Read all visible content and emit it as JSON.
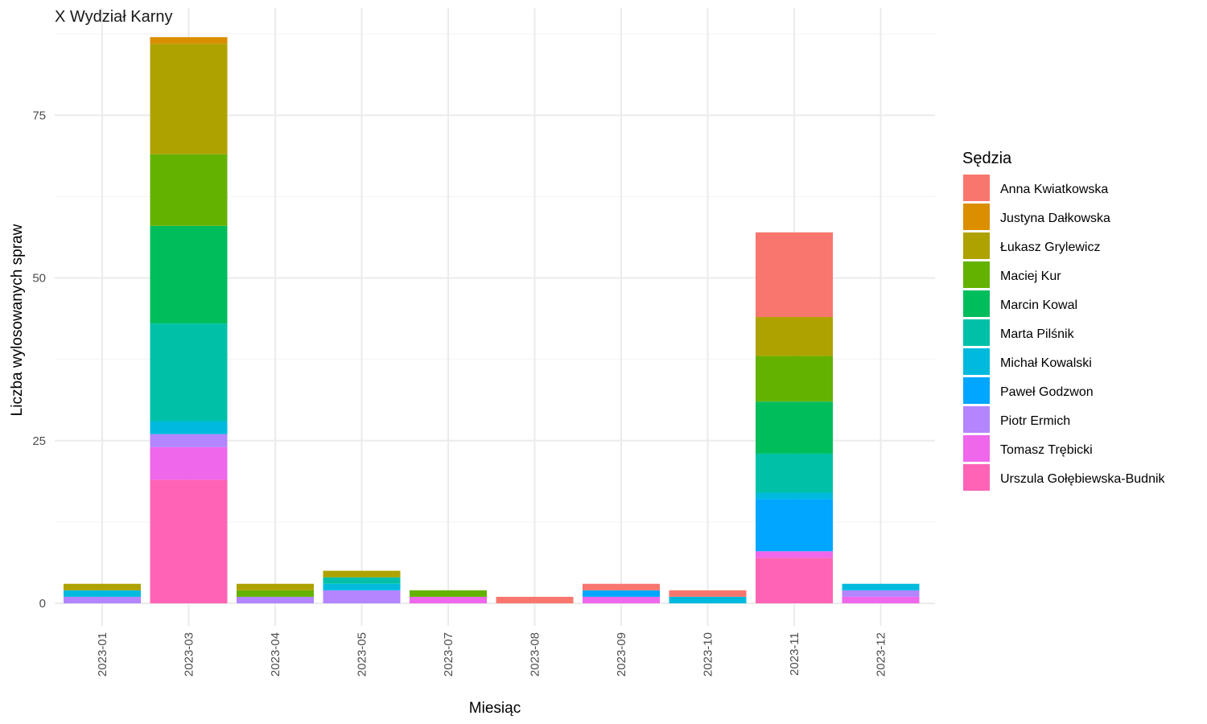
{
  "chart_data": {
    "type": "bar",
    "stacked": true,
    "facet_title": "X Wydział Karny",
    "xlabel": "Miesiąc",
    "ylabel": "Liczba wylosowanych spraw",
    "ylim": [
      0,
      88.7
    ],
    "yticks": [
      0,
      25,
      50,
      75
    ],
    "grid": true,
    "legend_position": "right",
    "legend_title": "Sędzia",
    "categories": [
      "2023-01",
      "2023-03",
      "2023-04",
      "2023-05",
      "2023-07",
      "2023-08",
      "2023-09",
      "2023-10",
      "2023-11",
      "2023-12"
    ],
    "series": [
      {
        "name": "Anna Kwiatkowska",
        "color": "#F8766D",
        "values": [
          0,
          0,
          0,
          0,
          0,
          1,
          1,
          1,
          13,
          0
        ]
      },
      {
        "name": "Justyna Dałkowska",
        "color": "#DB8E00",
        "values": [
          0,
          1,
          0,
          0,
          0,
          0,
          0,
          0,
          0,
          0
        ]
      },
      {
        "name": "Łukasz Grylewicz",
        "color": "#AEA200",
        "values": [
          1,
          17,
          1,
          1,
          0,
          0,
          0,
          0,
          6,
          0
        ]
      },
      {
        "name": "Maciej Kur",
        "color": "#64B200",
        "values": [
          0,
          11,
          1,
          0,
          1,
          0,
          0,
          0,
          7,
          0
        ]
      },
      {
        "name": "Marcin Kowal",
        "color": "#00BD5C",
        "values": [
          0,
          15,
          0,
          0,
          0,
          0,
          0,
          0,
          8,
          0
        ]
      },
      {
        "name": "Marta Pilśnik",
        "color": "#00C1A7",
        "values": [
          0,
          15,
          0,
          1,
          0,
          0,
          0,
          0,
          6,
          0
        ]
      },
      {
        "name": "Michał Kowalski",
        "color": "#00BADE",
        "values": [
          1,
          2,
          0,
          1,
          0,
          0,
          0,
          1,
          1,
          1
        ]
      },
      {
        "name": "Paweł Godzwon",
        "color": "#00A6FF",
        "values": [
          0,
          0,
          0,
          0,
          0,
          0,
          1,
          0,
          8,
          0
        ]
      },
      {
        "name": "Piotr Ermich",
        "color": "#B385FF",
        "values": [
          1,
          2,
          1,
          2,
          0,
          0,
          0,
          0,
          0,
          1
        ]
      },
      {
        "name": "Tomasz Trębicki",
        "color": "#EF67EB",
        "values": [
          0,
          5,
          0,
          0,
          1,
          0,
          1,
          0,
          1,
          1
        ]
      },
      {
        "name": "Urszula Gołębiewska-Budnik",
        "color": "#FF63B6",
        "values": [
          0,
          19,
          0,
          0,
          0,
          0,
          0,
          0,
          7,
          0
        ]
      }
    ]
  }
}
